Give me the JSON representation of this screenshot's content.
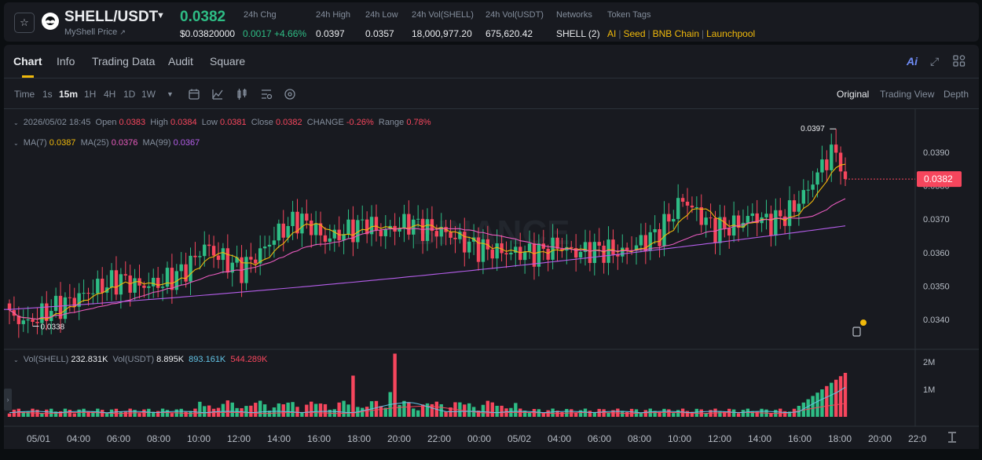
{
  "header": {
    "pair": "SHELL/USDT",
    "subtitle": "MyShell Price",
    "last_price": "0.0382",
    "usd_price": "$0.03820000",
    "stats": [
      {
        "label": "24h Chg",
        "value": "0.0017 +4.66%",
        "color": "#2ebd85"
      },
      {
        "label": "24h High",
        "value": "0.0397"
      },
      {
        "label": "24h Low",
        "value": "0.0357"
      },
      {
        "label": "24h Vol(SHELL)",
        "value": "18,000,977.20"
      },
      {
        "label": "24h Vol(USDT)",
        "value": "675,620.42"
      },
      {
        "label": "Networks",
        "value": "SHELL (2)"
      },
      {
        "label": "Token Tags",
        "value": ""
      }
    ],
    "tags": [
      "AI",
      "Seed",
      "BNB Chain",
      "Launchpool"
    ]
  },
  "tabs": [
    "Chart",
    "Info",
    "Trading Data",
    "Audit",
    "Square"
  ],
  "tab_icons": [
    "ai-icon",
    "expand-icon",
    "layout-grid-icon"
  ],
  "ai_label": "Ai",
  "intervals": [
    "Time",
    "1s",
    "15m",
    "1H",
    "4H",
    "1D",
    "1W"
  ],
  "active_interval": "15m",
  "views": [
    "Original",
    "Trading View",
    "Depth"
  ],
  "ohlc": {
    "date": "2026/05/02 18:45",
    "open_label": "Open",
    "open": "0.0383",
    "high_label": "High",
    "high": "0.0384",
    "low_label": "Low",
    "low": "0.0381",
    "close_label": "Close",
    "close": "0.0382",
    "change_label": "CHANGE",
    "change": "-0.26%",
    "range_label": "Range",
    "range": "0.78%"
  },
  "ma": {
    "ma7_label": "MA(7)",
    "ma7": "0.0387",
    "ma25_label": "MA(25)",
    "ma25": "0.0376",
    "ma99_label": "MA(99)",
    "ma99": "0.0367"
  },
  "vol": {
    "shell_label": "Vol(SHELL)",
    "shell": "232.831K",
    "usdt_label": "Vol(USDT)",
    "usdt": "8.895K",
    "ma1": "893.161K",
    "ma2": "544.289K"
  },
  "price_axis": [
    "0.0390",
    "0.0380",
    "0.0370",
    "0.0360",
    "0.0350",
    "0.0340"
  ],
  "current_price_tag": "0.0382",
  "high_marker": "0.0397",
  "low_marker": "0.0338",
  "volume_axis": [
    "2M",
    "1M"
  ],
  "time_axis": [
    "05/01",
    "04:00",
    "06:00",
    "08:00",
    "10:00",
    "12:00",
    "14:00",
    "16:00",
    "18:00",
    "20:00",
    "22:00",
    "00:00",
    "05/02",
    "04:00",
    "06:00",
    "08:00",
    "10:00",
    "12:00",
    "14:00",
    "16:00",
    "18:00",
    "20:00",
    "22:0"
  ],
  "watermark": "BINANCE",
  "colors": {
    "up": "#2ebd85",
    "down": "#f6465d",
    "ma7": "#f0b90b",
    "ma25": "#e85bbe",
    "ma99": "#b55eea",
    "accent": "#f0b90b"
  },
  "chart_data": {
    "type": "candlestick",
    "interval": "15m",
    "y_axis": {
      "min": 0.0335,
      "max": 0.0398,
      "ticks": [
        0.034,
        0.035,
        0.036,
        0.037,
        0.038,
        0.039
      ]
    },
    "volume_axis": {
      "min": 0,
      "max": 2000000,
      "ticks": [
        1000000,
        2000000
      ]
    },
    "anchors": [
      {
        "i": 0,
        "v": 0.0341
      },
      {
        "i": 4,
        "v": 0.0339
      },
      {
        "i": 9,
        "v": 0.0343
      },
      {
        "i": 14,
        "v": 0.0346
      },
      {
        "i": 18,
        "v": 0.0349
      },
      {
        "i": 24,
        "v": 0.0352
      },
      {
        "i": 28,
        "v": 0.035
      },
      {
        "i": 33,
        "v": 0.0351
      },
      {
        "i": 38,
        "v": 0.0355
      },
      {
        "i": 42,
        "v": 0.0362
      },
      {
        "i": 46,
        "v": 0.0358
      },
      {
        "i": 50,
        "v": 0.0355
      },
      {
        "i": 54,
        "v": 0.036
      },
      {
        "i": 58,
        "v": 0.0366
      },
      {
        "i": 62,
        "v": 0.037
      },
      {
        "i": 65,
        "v": 0.0368
      },
      {
        "i": 68,
        "v": 0.0364
      },
      {
        "i": 72,
        "v": 0.0366
      },
      {
        "i": 77,
        "v": 0.0369
      },
      {
        "i": 80,
        "v": 0.0366
      },
      {
        "i": 86,
        "v": 0.0369
      },
      {
        "i": 90,
        "v": 0.0367
      },
      {
        "i": 94,
        "v": 0.0366
      },
      {
        "i": 98,
        "v": 0.0363
      },
      {
        "i": 102,
        "v": 0.0361
      },
      {
        "i": 108,
        "v": 0.036
      },
      {
        "i": 114,
        "v": 0.036
      },
      {
        "i": 118,
        "v": 0.0362
      },
      {
        "i": 122,
        "v": 0.036
      },
      {
        "i": 126,
        "v": 0.0361
      },
      {
        "i": 132,
        "v": 0.036
      },
      {
        "i": 136,
        "v": 0.0363
      },
      {
        "i": 140,
        "v": 0.0366
      },
      {
        "i": 143,
        "v": 0.0372
      },
      {
        "i": 145,
        "v": 0.0376
      },
      {
        "i": 148,
        "v": 0.0372
      },
      {
        "i": 152,
        "v": 0.0367
      },
      {
        "i": 156,
        "v": 0.0368
      },
      {
        "i": 160,
        "v": 0.0371
      },
      {
        "i": 164,
        "v": 0.0369
      },
      {
        "i": 168,
        "v": 0.0372
      },
      {
        "i": 172,
        "v": 0.0379
      },
      {
        "i": 175,
        "v": 0.0386
      },
      {
        "i": 177,
        "v": 0.039
      },
      {
        "i": 179,
        "v": 0.0388
      },
      {
        "i": 180,
        "v": 0.0382
      }
    ],
    "candles": 181,
    "high": {
      "value": 0.0397,
      "index": 178
    },
    "low": {
      "value": 0.0338,
      "index": 5
    },
    "ma99_start": 0.0343,
    "ma99_end": 0.0368
  }
}
